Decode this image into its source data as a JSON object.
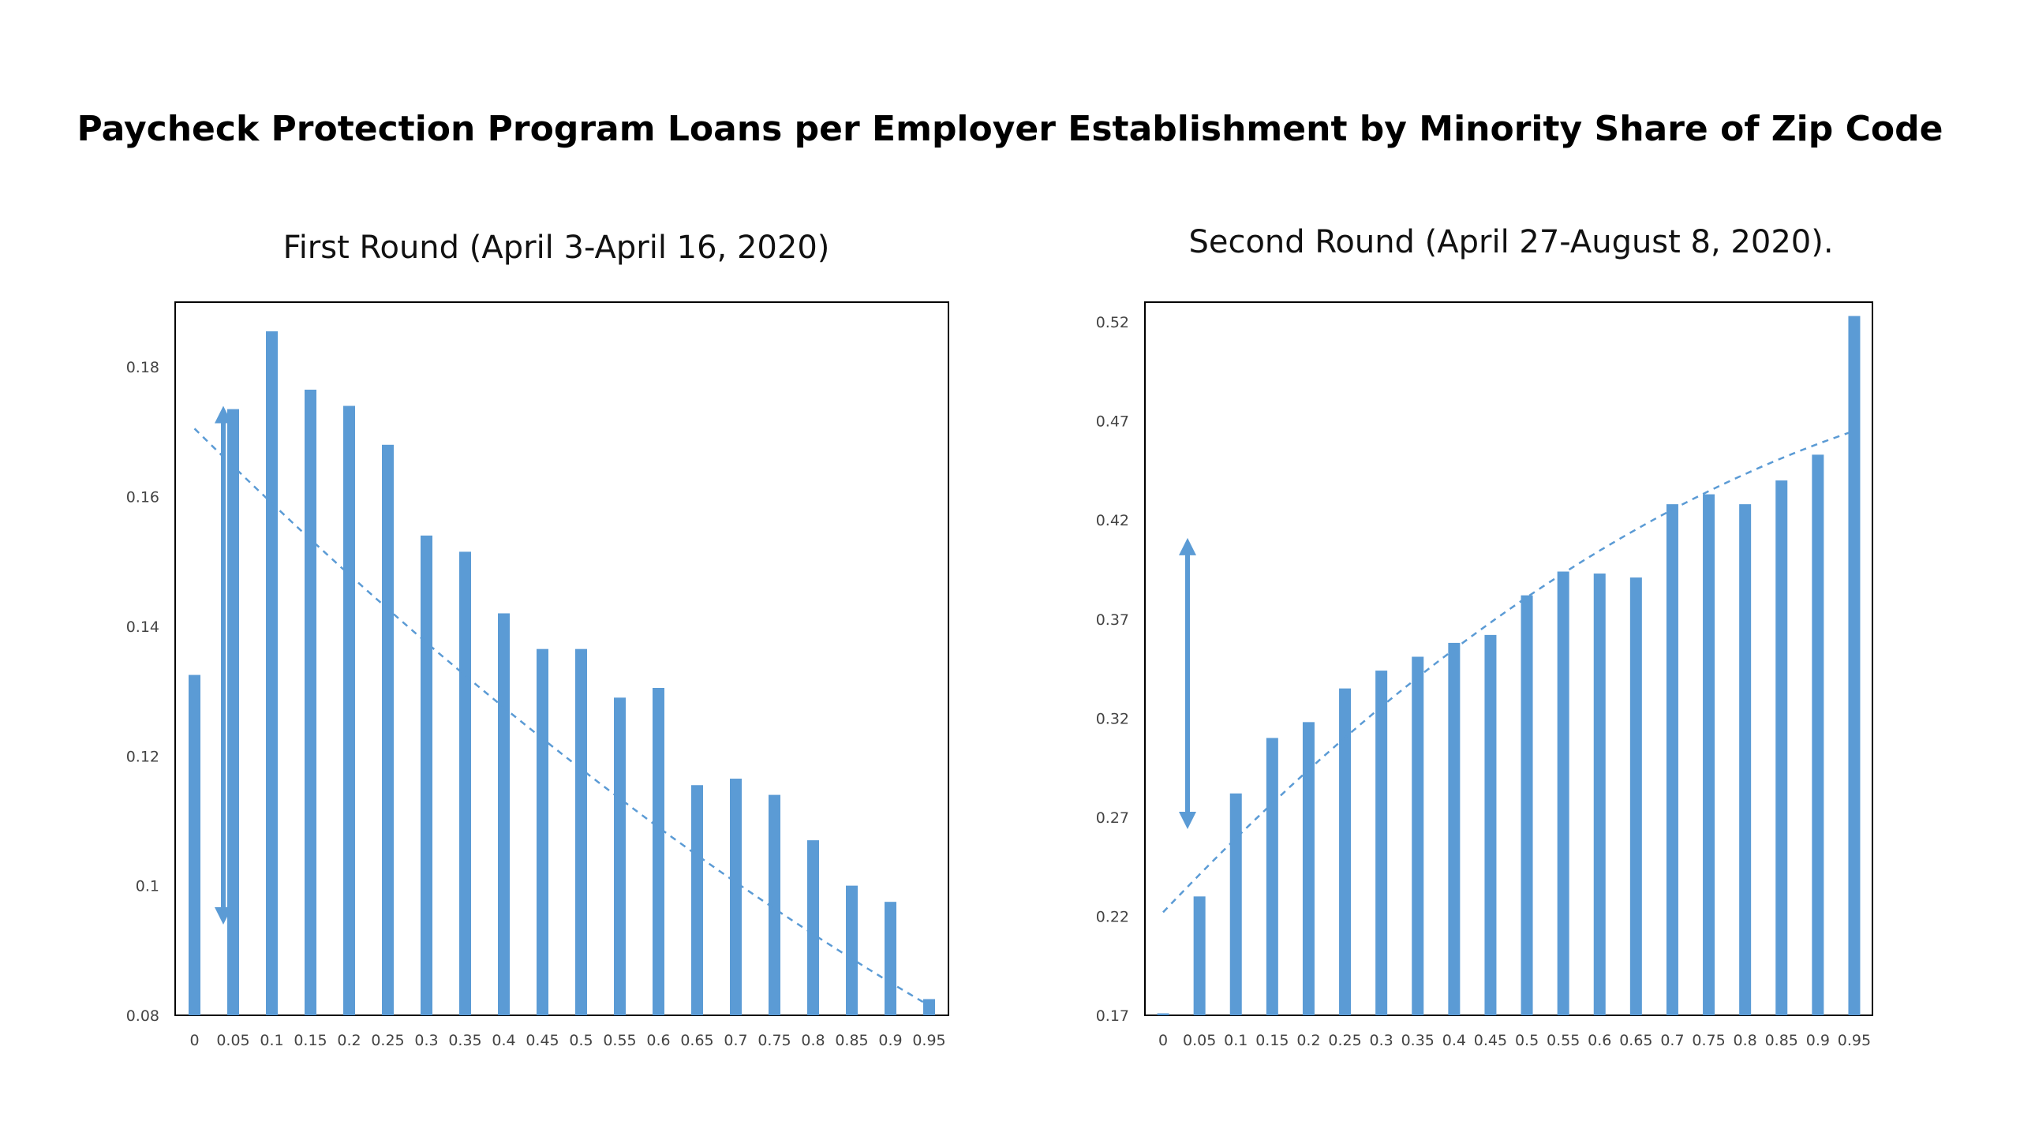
{
  "title": "Paycheck Protection Program Loans per Employer Establishment by Minority Share of Zip Code",
  "colors": {
    "bar": "#5b9bd5",
    "frame": "#000000"
  },
  "chart_data": [
    {
      "type": "bar",
      "title": "First Round (April 3-April 16, 2020)",
      "categories": [
        "0",
        "0.05",
        "0.1",
        "0.15",
        "0.2",
        "0.25",
        "0.3",
        "0.35",
        "0.4",
        "0.45",
        "0.5",
        "0.55",
        "0.6",
        "0.65",
        "0.7",
        "0.75",
        "0.8",
        "0.85",
        "0.9",
        "0.95"
      ],
      "values": [
        0.1325,
        0.1735,
        0.1855,
        0.1765,
        0.174,
        0.168,
        0.154,
        0.1515,
        0.142,
        0.1365,
        0.1365,
        0.129,
        0.1305,
        0.1155,
        0.1165,
        0.114,
        0.107,
        0.1,
        0.0975,
        0.0825
      ],
      "ylim": [
        0.08,
        0.19
      ],
      "yticks": [
        "0.08",
        "0.1",
        "0.12",
        "0.14",
        "0.16",
        "0.18"
      ],
      "trendline": {
        "type": "polynomial",
        "style": "dashed",
        "start": 0.1705,
        "end": 0.0815
      },
      "annotation": {
        "type": "double-arrow",
        "from": 0.094,
        "to": 0.174
      },
      "grid": false
    },
    {
      "type": "bar",
      "title": "Second Round (April 27-August 8, 2020).",
      "categories": [
        "0",
        "0.05",
        "0.1",
        "0.15",
        "0.2",
        "0.25",
        "0.3",
        "0.35",
        "0.4",
        "0.45",
        "0.5",
        "0.55",
        "0.6",
        "0.65",
        "0.7",
        "0.75",
        "0.8",
        "0.85",
        "0.9",
        "0.95"
      ],
      "values": [
        0.171,
        0.23,
        0.282,
        0.31,
        0.318,
        0.335,
        0.344,
        0.351,
        0.358,
        0.362,
        0.382,
        0.394,
        0.393,
        0.391,
        0.428,
        0.433,
        0.428,
        0.44,
        0.453,
        0.523
      ],
      "ylim": [
        0.17,
        0.53
      ],
      "yticks": [
        "0.17",
        "0.22",
        "0.27",
        "0.32",
        "0.37",
        "0.42",
        "0.47",
        "0.52"
      ],
      "trendline": {
        "type": "polynomial",
        "style": "dashed",
        "start": 0.222,
        "end": 0.465
      },
      "annotation": {
        "type": "double-arrow",
        "from": 0.264,
        "to": 0.411
      },
      "grid": false
    }
  ]
}
